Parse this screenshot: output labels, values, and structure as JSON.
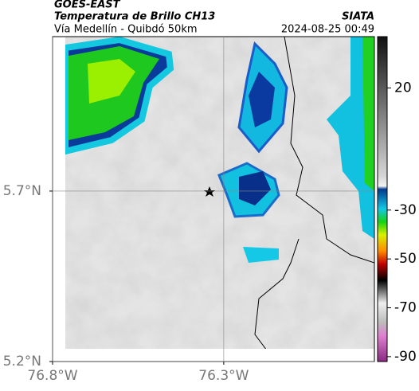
{
  "header": {
    "source": "GOES-EAST",
    "title": "Temperatura de Brillo CH13",
    "subtitle": "Vía Medellín - Quibdó 50km",
    "brand": "SIATA",
    "timestamp": "2024-08-25 00:49"
  },
  "map": {
    "xlim": [
      -76.8,
      -75.86
    ],
    "ylim": [
      5.2,
      6.153
    ],
    "xticks": [
      {
        "value": -76.8,
        "label": "76.8°W"
      },
      {
        "value": -76.3,
        "label": "76.3°W"
      }
    ],
    "yticks": [
      {
        "value": 5.2,
        "label": "5.2°N"
      },
      {
        "value": 5.7,
        "label": "5.7°N"
      }
    ],
    "grid": true
  },
  "colorbar": {
    "lim": [
      -92,
      41
    ],
    "ticks": [
      20,
      -30,
      -50,
      -70,
      -90
    ]
  }
}
